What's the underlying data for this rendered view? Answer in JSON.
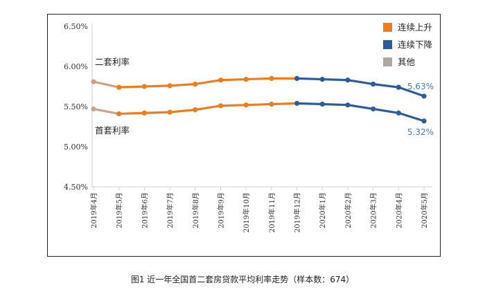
{
  "chart_data": {
    "type": "line",
    "categories": [
      "2019年4月",
      "2019年5月",
      "2019年6月",
      "2019年7月",
      "2019年8月",
      "2019年9月",
      "2019年10月",
      "2019年11月",
      "2019年12月",
      "2020年1月",
      "2020年2月",
      "2020年3月",
      "2020年4月",
      "2020年5月"
    ],
    "series": [
      {
        "name": "二套利率",
        "values": [
          5.81,
          5.74,
          5.75,
          5.76,
          5.78,
          5.83,
          5.84,
          5.85,
          5.85,
          5.84,
          5.83,
          5.78,
          5.74,
          5.63
        ]
      },
      {
        "name": "首套利率",
        "values": [
          5.47,
          5.41,
          5.42,
          5.43,
          5.46,
          5.51,
          5.52,
          5.53,
          5.54,
          5.53,
          5.52,
          5.47,
          5.42,
          5.32
        ]
      }
    ],
    "y_ticks": [
      "6.50%",
      "6.00%",
      "5.50%",
      "5.00%",
      "4.50%"
    ],
    "ylim": [
      4.5,
      6.5
    ],
    "end_labels": [
      "5.63%",
      "5.32%"
    ],
    "segments": {
      "other_until_index": 1,
      "rising_until_index": 8
    },
    "legend": {
      "position": "top-right",
      "items": [
        {
          "label": "连续上升",
          "color": "#EE7D1E"
        },
        {
          "label": "连续下降",
          "color": "#2E5C99"
        },
        {
          "label": "其他",
          "color": "#B0A6A2"
        }
      ]
    },
    "grid": false,
    "caption": "图1  近一年全国首二套房贷款平均利率走势（样本数：674）"
  },
  "colors": {
    "rising": "#EE7D1E",
    "falling": "#2E5C99",
    "other": "#C9A48A",
    "end_label": "#4A7AB5"
  }
}
